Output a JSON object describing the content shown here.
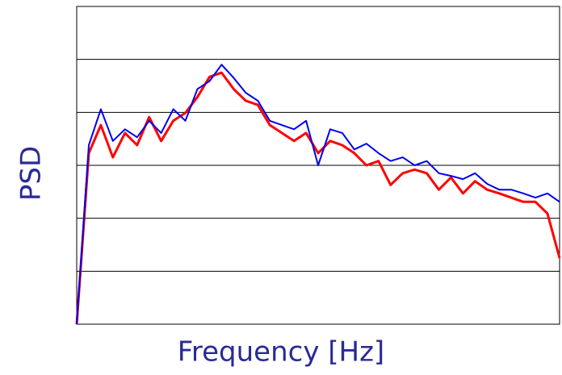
{
  "chart_data": {
    "type": "line",
    "xlabel": "Frequency [Hz]",
    "ylabel": "PSD",
    "x": [
      0,
      2.5,
      5,
      7.5,
      10,
      12.5,
      15,
      17.5,
      20,
      22.5,
      25,
      27.5,
      30,
      32.5,
      35,
      37.5,
      40,
      42.5,
      45,
      47.5,
      50,
      52.5,
      55,
      57.5,
      60,
      62.5,
      65,
      67.5,
      70,
      72.5,
      75,
      77.5,
      80,
      82.5,
      85,
      87.5,
      90,
      92.5,
      95,
      97.5,
      100
    ],
    "series": [
      {
        "color": "#ff0000",
        "values": [
          0,
          3.23,
          3.76,
          3.15,
          3.61,
          3.38,
          3.91,
          3.46,
          3.84,
          3.99,
          4.29,
          4.67,
          4.75,
          4.44,
          4.22,
          4.14,
          3.76,
          3.61,
          3.46,
          3.61,
          3.23,
          3.46,
          3.38,
          3.23,
          3.0,
          3.08,
          2.63,
          2.85,
          2.92,
          2.85,
          2.54,
          2.77,
          2.47,
          2.7,
          2.54,
          2.47,
          2.39,
          2.31,
          2.31,
          2.09,
          1.25
        ]
      },
      {
        "color": "#0000ee",
        "values": [
          0,
          3.38,
          4.06,
          3.46,
          3.68,
          3.53,
          3.84,
          3.61,
          4.06,
          3.84,
          4.44,
          4.59,
          4.9,
          4.65,
          4.37,
          4.22,
          3.84,
          3.76,
          3.68,
          3.84,
          3.0,
          3.68,
          3.61,
          3.3,
          3.41,
          3.23,
          3.08,
          3.15,
          3.0,
          3.08,
          2.85,
          2.8,
          2.74,
          2.85,
          2.65,
          2.54,
          2.54,
          2.47,
          2.39,
          2.47,
          2.31
        ]
      }
    ],
    "xlim": [
      0,
      100
    ],
    "ylim": [
      0,
      6
    ],
    "yticks": [
      1,
      2,
      3,
      4,
      5
    ],
    "grid": true
  }
}
